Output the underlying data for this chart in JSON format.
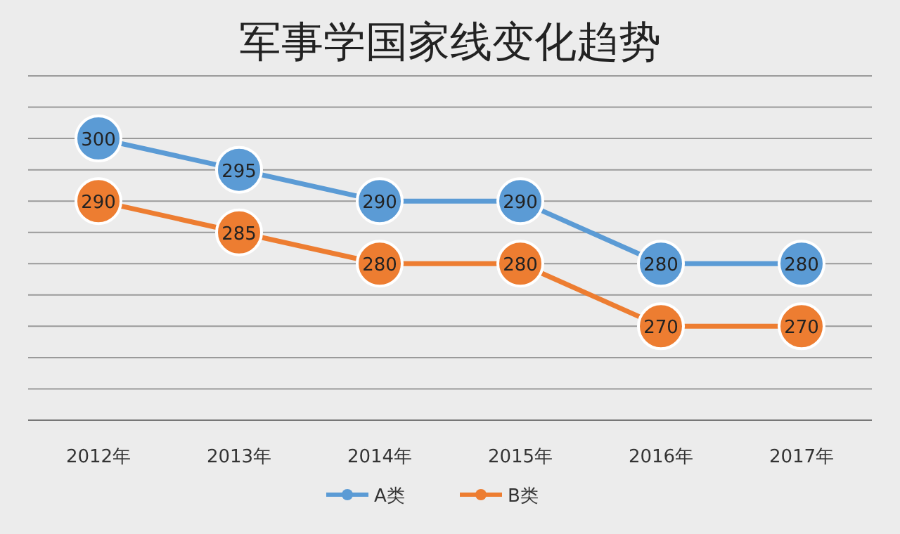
{
  "chart_data": {
    "type": "line",
    "title": "军事学国家线变化趋势",
    "categories": [
      "2012年",
      "2013年",
      "2014年",
      "2015年",
      "2016年",
      "2017年"
    ],
    "series": [
      {
        "name": "A类",
        "color": "#5b9bd5",
        "values": [
          300,
          295,
          290,
          290,
          280,
          280
        ]
      },
      {
        "name": "B类",
        "color": "#ed7d31",
        "values": [
          290,
          285,
          280,
          280,
          270,
          270
        ]
      }
    ],
    "ylim": [
      255,
      310
    ],
    "yticks": [
      {
        "value": 255,
        "label": null
      },
      {
        "value": 260,
        "label": null
      },
      {
        "value": 265,
        "label": null
      },
      {
        "value": 270,
        "label": null
      },
      {
        "value": 275,
        "label": null
      },
      {
        "value": 280,
        "label": null
      },
      {
        "value": 285,
        "label": null
      },
      {
        "value": 290,
        "label": null
      },
      {
        "value": 295,
        "label": null
      },
      {
        "value": 300,
        "label": null
      },
      {
        "value": 305,
        "label": null
      },
      {
        "value": 310,
        "label": null
      }
    ],
    "tick_labels": "x",
    "grid": "y",
    "legend": "bottom",
    "marker": "circle",
    "line_style": "solid",
    "data_labels": true
  }
}
